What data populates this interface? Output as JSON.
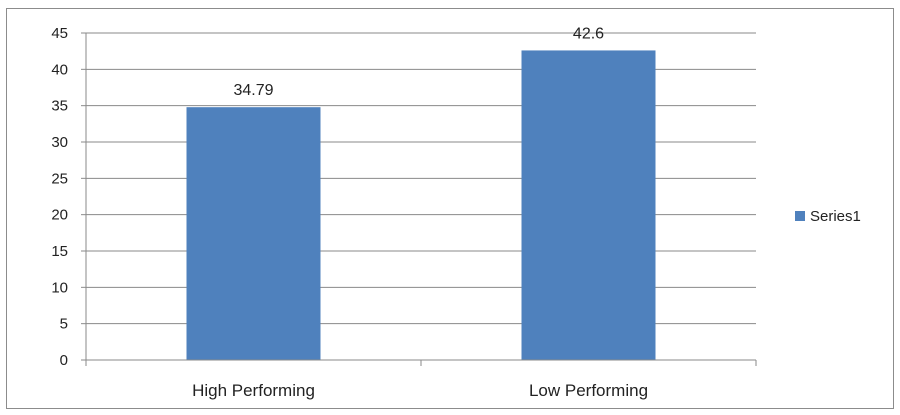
{
  "chart_data": {
    "type": "bar",
    "categories": [
      "High Performing",
      "Low Performing"
    ],
    "series": [
      {
        "name": "Series1",
        "values": [
          34.79,
          42.6
        ],
        "color": "#4f81bd"
      }
    ],
    "data_labels": [
      "34.79",
      "42.6"
    ],
    "ylim": [
      0,
      45
    ],
    "y_ticks": [
      0,
      5,
      10,
      15,
      20,
      25,
      30,
      35,
      40,
      45
    ],
    "grid": true,
    "legend": "right"
  }
}
